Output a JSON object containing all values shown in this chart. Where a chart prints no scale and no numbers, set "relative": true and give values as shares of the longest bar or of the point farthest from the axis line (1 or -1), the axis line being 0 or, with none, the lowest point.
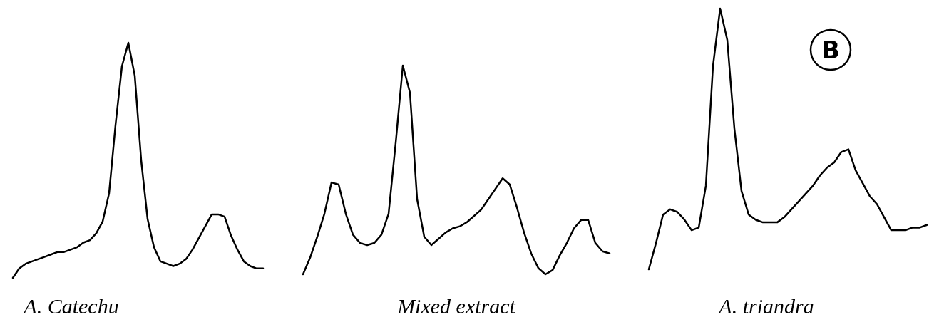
{
  "chart_data": [
    {
      "type": "line",
      "title": "A. Catechu",
      "relative": true,
      "color": "#000000",
      "categories": [
        null,
        null,
        null,
        null,
        null,
        null,
        null,
        null,
        null,
        null,
        null,
        null,
        null,
        null,
        null,
        null,
        null,
        null,
        null,
        null,
        null,
        null,
        null,
        null,
        null,
        null,
        null,
        null,
        null,
        null,
        null,
        null,
        null,
        null,
        null,
        null,
        null,
        null,
        null,
        null
      ],
      "values": [
        0,
        0.04,
        0.06,
        0.07,
        0.08,
        0.09,
        0.1,
        0.11,
        0.11,
        0.12,
        0.13,
        0.15,
        0.16,
        0.19,
        0.24,
        0.36,
        0.65,
        0.9,
        1,
        0.86,
        0.5,
        0.25,
        0.13,
        0.07,
        0.06,
        0.05,
        0.06,
        0.08,
        0.12,
        0.17,
        0.22,
        0.27,
        0.27,
        0.26,
        0.18,
        0.12,
        0.07,
        0.05,
        0.04,
        0.04
      ]
    },
    {
      "type": "line",
      "title": "Mixed extract",
      "relative": true,
      "color": "#000000",
      "categories": [
        null,
        null,
        null,
        null,
        null,
        null,
        null,
        null,
        null,
        null,
        null,
        null,
        null,
        null,
        null,
        null,
        null,
        null,
        null,
        null,
        null,
        null,
        null,
        null,
        null,
        null,
        null,
        null,
        null,
        null,
        null,
        null,
        null,
        null,
        null,
        null,
        null,
        null,
        null,
        null,
        null,
        null,
        null,
        null
      ],
      "values": [
        0,
        0.08,
        0.18,
        0.29,
        0.44,
        0.43,
        0.29,
        0.19,
        0.15,
        0.14,
        0.15,
        0.19,
        0.29,
        0.63,
        1,
        0.87,
        0.36,
        0.18,
        0.14,
        0.17,
        0.2,
        0.22,
        0.23,
        0.25,
        0.28,
        0.31,
        0.36,
        0.41,
        0.46,
        0.43,
        0.32,
        0.2,
        0.1,
        0.03,
        0,
        0.02,
        0.09,
        0.15,
        0.22,
        0.26,
        0.26,
        0.15,
        0.11,
        0.1
      ]
    },
    {
      "type": "line",
      "title": "A. triandra",
      "relative": true,
      "color": "#000000",
      "categories": [
        null,
        null,
        null,
        null,
        null,
        null,
        null,
        null,
        null,
        null,
        null,
        null,
        null,
        null,
        null,
        null,
        null,
        null,
        null,
        null,
        null,
        null,
        null,
        null,
        null,
        null,
        null,
        null,
        null,
        null,
        null,
        null,
        null,
        null,
        null,
        null,
        null,
        null,
        null,
        null
      ],
      "values": [
        0,
        0.1,
        0.21,
        0.23,
        0.22,
        0.19,
        0.15,
        0.16,
        0.32,
        0.78,
        1,
        0.88,
        0.54,
        0.3,
        0.21,
        0.19,
        0.18,
        0.18,
        0.18,
        0.2,
        0.23,
        0.26,
        0.29,
        0.32,
        0.36,
        0.39,
        0.41,
        0.45,
        0.46,
        0.38,
        0.33,
        0.28,
        0.25,
        0.2,
        0.15,
        0.15,
        0.15,
        0.16,
        0.16,
        0.17
      ],
      "annotations": [
        "B"
      ]
    }
  ]
}
